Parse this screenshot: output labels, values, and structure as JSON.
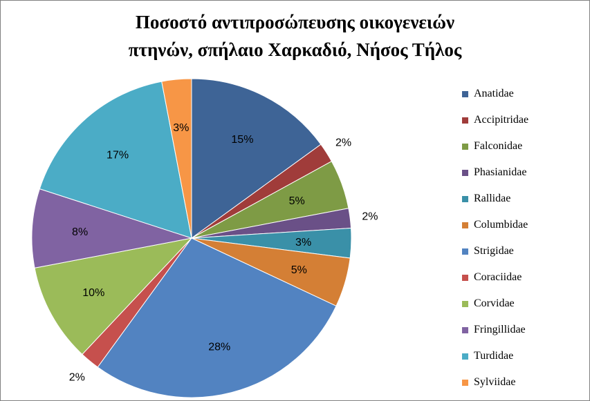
{
  "chart_data": {
    "type": "pie",
    "title_lines": [
      "Ποσοστό αντιπροσώπευσης οικογενειών",
      "πτηνών, σπήλαιο Χαρκαδιό, Νήσος Τήλος"
    ],
    "categories": [
      "Anatidae",
      "Accipitridae",
      "Falconidae",
      "Phasianidae",
      "Rallidae",
      "Columbidae",
      "Strigidae",
      "Coraciidae",
      "Corvidae",
      "Fringillidae",
      "Turdidae",
      "Sylviidae"
    ],
    "values": [
      15,
      2,
      5,
      2,
      3,
      5,
      28,
      2,
      10,
      8,
      17,
      3
    ],
    "labels": [
      "15%",
      "2%",
      "5%",
      "2%",
      "3%",
      "5%",
      "28%",
      "2%",
      "10%",
      "8%",
      "17%",
      "3%"
    ],
    "colors": [
      "#3E6496",
      "#A03C3A",
      "#7E9B45",
      "#6A5087",
      "#3A90A8",
      "#D47F35",
      "#5283C1",
      "#C6504D",
      "#9BBB59",
      "#8063A2",
      "#4BACC6",
      "#F79646"
    ],
    "legend_position": "right"
  }
}
